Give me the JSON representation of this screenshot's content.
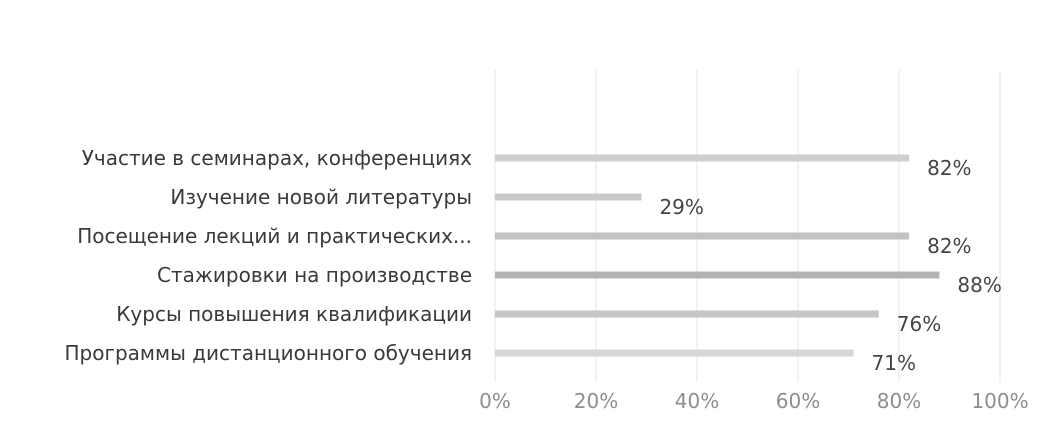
{
  "chart_data": {
    "type": "bar",
    "orientation": "horizontal",
    "categories": [
      "Участие в семинарах, конференциях",
      "Изучение новой литературы",
      "Посещение лекций и практических...",
      "Стажировки на производстве",
      "Курсы повышения квалификации",
      "Программы дистанционного обучения"
    ],
    "values": [
      82,
      29,
      82,
      88,
      76,
      71
    ],
    "value_labels": [
      "82%",
      "29%",
      "82%",
      "88%",
      "76%",
      "71%"
    ],
    "x_ticks": [
      "0%",
      "20%",
      "40%",
      "60%",
      "80%",
      "100%"
    ],
    "xlim": [
      0,
      100
    ],
    "grid": true,
    "colors": [
      "#cfcfcf",
      "#cacaca",
      "#c2c2c2",
      "#b3b3b3",
      "#c6c6c6",
      "#d6d6d6"
    ],
    "title": ""
  }
}
